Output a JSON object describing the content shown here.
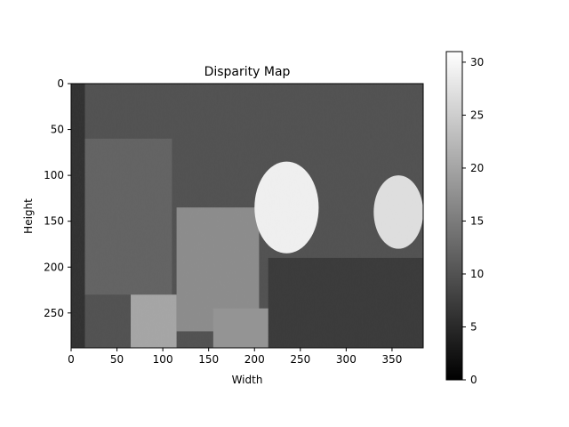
{
  "chart_data": {
    "type": "heatmap",
    "title": "Disparity Map",
    "xlabel": "Width",
    "ylabel": "Height",
    "colormap": "gray",
    "image_shape": [
      288,
      384
    ],
    "xlim": [
      0,
      384
    ],
    "ylim": [
      288,
      0
    ],
    "x_ticks": [
      0,
      50,
      100,
      150,
      200,
      250,
      300,
      350
    ],
    "y_ticks": [
      0,
      50,
      100,
      150,
      200,
      250
    ],
    "colorbar": {
      "vmin": 0,
      "vmax": 31,
      "ticks": [
        0,
        5,
        10,
        15,
        20,
        25,
        30
      ]
    },
    "regions": [
      {
        "label": "background",
        "x": [
          0,
          384
        ],
        "y": [
          0,
          288
        ],
        "value": 10
      },
      {
        "label": "left-dark-strip",
        "x": [
          0,
          15
        ],
        "y": [
          0,
          288
        ],
        "value": 6
      },
      {
        "label": "left-mid-area",
        "x": [
          15,
          110
        ],
        "y": [
          60,
          230
        ],
        "value": 12
      },
      {
        "label": "center-gray-figure",
        "x": [
          115,
          205
        ],
        "y": [
          135,
          270
        ],
        "value": 17
      },
      {
        "label": "lower-left-light",
        "x": [
          65,
          115
        ],
        "y": [
          230,
          288
        ],
        "value": 20
      },
      {
        "label": "lower-middle-light",
        "x": [
          155,
          220
        ],
        "y": [
          245,
          288
        ],
        "value": 18
      },
      {
        "label": "bright-object",
        "x": [
          200,
          270
        ],
        "y": [
          85,
          185
        ],
        "value": 29
      },
      {
        "label": "bright-right-object",
        "x": [
          330,
          384
        ],
        "y": [
          100,
          180
        ],
        "value": 27
      },
      {
        "label": "lower-right-dark",
        "x": [
          215,
          384
        ],
        "y": [
          190,
          288
        ],
        "value": 7
      }
    ]
  }
}
